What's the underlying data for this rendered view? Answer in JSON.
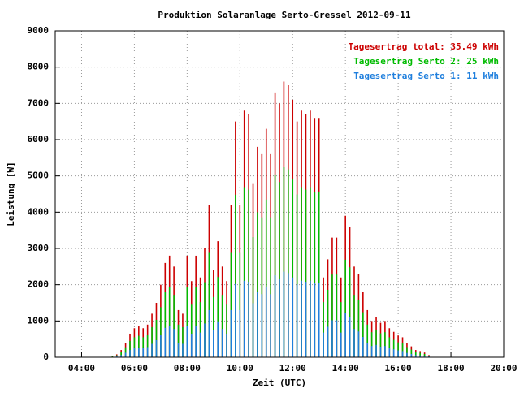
{
  "chart_data": {
    "type": "impulse",
    "title": "Produktion Solaranlage Serto-Gressel 2012-09-11",
    "x_label": "Zeit (UTC)",
    "y_label": "Leistung [W]",
    "x": [
      "05:10",
      "05:20",
      "05:30",
      "05:40",
      "05:50",
      "06:00",
      "06:10",
      "06:20",
      "06:30",
      "06:40",
      "06:50",
      "07:00",
      "07:10",
      "07:20",
      "07:30",
      "07:40",
      "07:50",
      "08:00",
      "08:10",
      "08:20",
      "08:30",
      "08:40",
      "08:50",
      "09:00",
      "09:10",
      "09:20",
      "09:30",
      "09:40",
      "09:50",
      "10:00",
      "10:10",
      "10:20",
      "10:30",
      "10:40",
      "10:50",
      "11:00",
      "11:10",
      "11:20",
      "11:30",
      "11:40",
      "11:50",
      "12:00",
      "12:10",
      "12:20",
      "12:30",
      "12:40",
      "12:50",
      "13:00",
      "13:10",
      "13:20",
      "13:30",
      "13:40",
      "13:50",
      "14:00",
      "14:10",
      "14:20",
      "14:30",
      "14:40",
      "14:50",
      "15:00",
      "15:10",
      "15:20",
      "15:30",
      "15:40",
      "15:50",
      "16:00",
      "16:10",
      "16:20",
      "16:30",
      "16:40",
      "16:50",
      "17:00",
      "17:10"
    ],
    "series": [
      {
        "name": "Tagesertrag total: 35.49 kWh",
        "color": "#cc0000",
        "values": [
          30,
          80,
          200,
          400,
          650,
          800,
          850,
          800,
          900,
          1200,
          1500,
          2000,
          2600,
          2800,
          2500,
          1300,
          1200,
          2800,
          2100,
          2800,
          2200,
          3000,
          4200,
          2400,
          3200,
          2500,
          2100,
          4200,
          6500,
          4200,
          6800,
          6700,
          4800,
          5800,
          5600,
          6300,
          5600,
          7300,
          7000,
          7600,
          7500,
          7100,
          6500,
          6800,
          6700,
          6800,
          6600,
          6600,
          2200,
          2700,
          3300,
          3300,
          2200,
          3900,
          3600,
          2500,
          2300,
          1800,
          1300,
          1000,
          1100,
          950,
          1000,
          800,
          700,
          600,
          550,
          400,
          300,
          200,
          170,
          130,
          60
        ]
      },
      {
        "name": "Tagesertrag Serto 2: 25 kWh",
        "color": "#00bb00",
        "values": [
          20,
          55,
          140,
          275,
          450,
          550,
          590,
          550,
          620,
          830,
          1030,
          1380,
          1790,
          1930,
          1720,
          900,
          830,
          1930,
          1450,
          1930,
          1520,
          2070,
          2900,
          1660,
          2210,
          1720,
          1450,
          2900,
          4480,
          2900,
          4690,
          4620,
          3310,
          4000,
          3860,
          4350,
          3860,
          5040,
          4830,
          5240,
          5180,
          4900,
          4490,
          4690,
          4620,
          4690,
          4550,
          4550,
          1520,
          1860,
          2280,
          2280,
          1520,
          2690,
          2480,
          1720,
          1590,
          1240,
          900,
          690,
          760,
          660,
          690,
          550,
          480,
          410,
          380,
          280,
          210,
          140,
          120,
          90,
          40
        ]
      },
      {
        "name": "Tagesertrag Serto 1: 11 kWh",
        "color": "#1f7fdd",
        "values": [
          10,
          25,
          60,
          125,
          200,
          250,
          260,
          250,
          280,
          370,
          470,
          620,
          810,
          870,
          780,
          400,
          370,
          870,
          650,
          870,
          680,
          930,
          1300,
          740,
          990,
          780,
          650,
          1300,
          2020,
          1300,
          2110,
          2080,
          1490,
          1800,
          1740,
          1950,
          1740,
          2260,
          2170,
          2360,
          2320,
          2200,
          2010,
          2110,
          2080,
          2110,
          2050,
          2050,
          680,
          840,
          1020,
          1020,
          680,
          1210,
          1120,
          780,
          710,
          560,
          400,
          310,
          340,
          290,
          310,
          250,
          220,
          190,
          170,
          120,
          90,
          60,
          50,
          40,
          20
        ]
      }
    ],
    "xlim": [
      "03:00",
      "20:00"
    ],
    "xticks": [
      "04:00",
      "06:00",
      "08:00",
      "10:00",
      "12:00",
      "14:00",
      "16:00",
      "18:00",
      "20:00"
    ],
    "ylim": [
      0,
      9000
    ],
    "yticks": [
      0,
      1000,
      2000,
      3000,
      4000,
      5000,
      6000,
      7000,
      8000,
      9000
    ],
    "grid": true,
    "legend": "top-right"
  }
}
